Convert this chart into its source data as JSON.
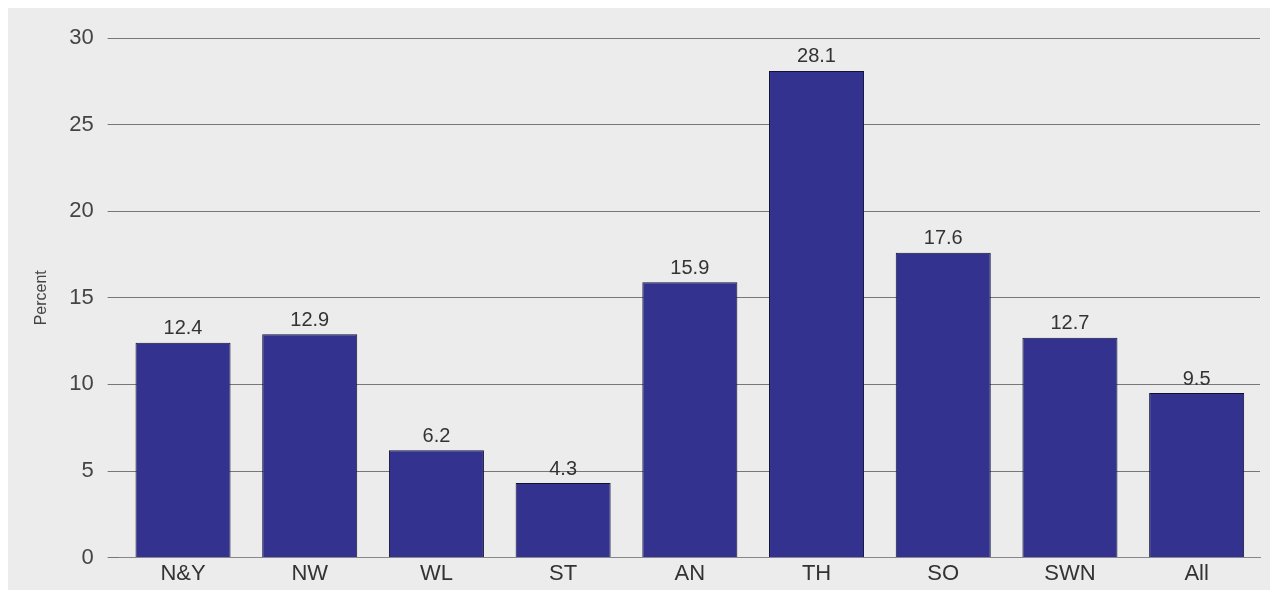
{
  "chart_data": {
    "type": "bar",
    "ylabel": "Percent",
    "categories": [
      "N&Y",
      "NW",
      "WL",
      "ST",
      "AN",
      "TH",
      "SO",
      "SWN",
      "All"
    ],
    "values": [
      12.4,
      12.9,
      6.2,
      4.3,
      15.9,
      28.1,
      17.6,
      12.7,
      9.5
    ],
    "color": "#33338f",
    "ylim": [
      0,
      30
    ],
    "yticks": [
      0,
      5,
      10,
      15,
      20,
      25,
      30
    ],
    "grid": "y",
    "data_labels": true,
    "legend": false
  }
}
